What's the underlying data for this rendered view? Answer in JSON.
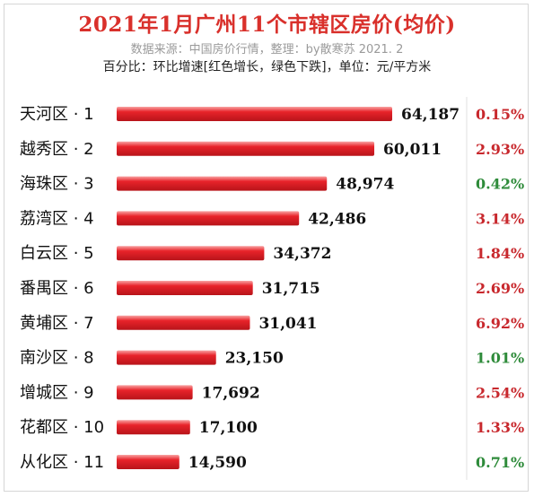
{
  "header": {
    "title": "2021年1月广州11个市辖区房价(均价)",
    "source": "数据来源：中国房价行情，整理：by散寒苏  2021. 2",
    "note": "百分比：环比增速[红色增长，绿色下跌]，单位：元/平方米"
  },
  "colors": {
    "bar": "#e8232a",
    "increase": "#c8282d",
    "decrease": "#2e8b3a",
    "title": "#d9302b"
  },
  "chart_data": {
    "type": "bar",
    "orientation": "horizontal",
    "title": "2021年1月广州11个市辖区房价(均价)",
    "categories": [
      "天河区 · 1",
      "越秀区 · 2",
      "海珠区 · 3",
      "荔湾区 · 4",
      "白云区 · 5",
      "番禺区 · 6",
      "黄埔区 · 7",
      "南沙区 · 8",
      "增城区 · 9",
      "花都区 · 10",
      "从化区 · 11"
    ],
    "values": [
      64187,
      60011,
      48974,
      42486,
      34372,
      31715,
      31041,
      23150,
      17692,
      17100,
      14590
    ],
    "value_labels": [
      "64,187",
      "60,011",
      "48,974",
      "42,486",
      "34,372",
      "31,715",
      "31,041",
      "23,150",
      "17,692",
      "17,100",
      "14,590"
    ],
    "change_labels": [
      "0.15%",
      "2.93%",
      "0.42%",
      "3.14%",
      "1.84%",
      "2.69%",
      "6.92%",
      "1.01%",
      "2.54%",
      "1.33%",
      "0.71%"
    ],
    "change_direction": [
      "up",
      "up",
      "down",
      "up",
      "up",
      "up",
      "up",
      "down",
      "up",
      "up",
      "down"
    ],
    "xlim": [
      0,
      70000
    ],
    "grid": false,
    "legend": "none",
    "xlabel": "",
    "ylabel": ""
  }
}
